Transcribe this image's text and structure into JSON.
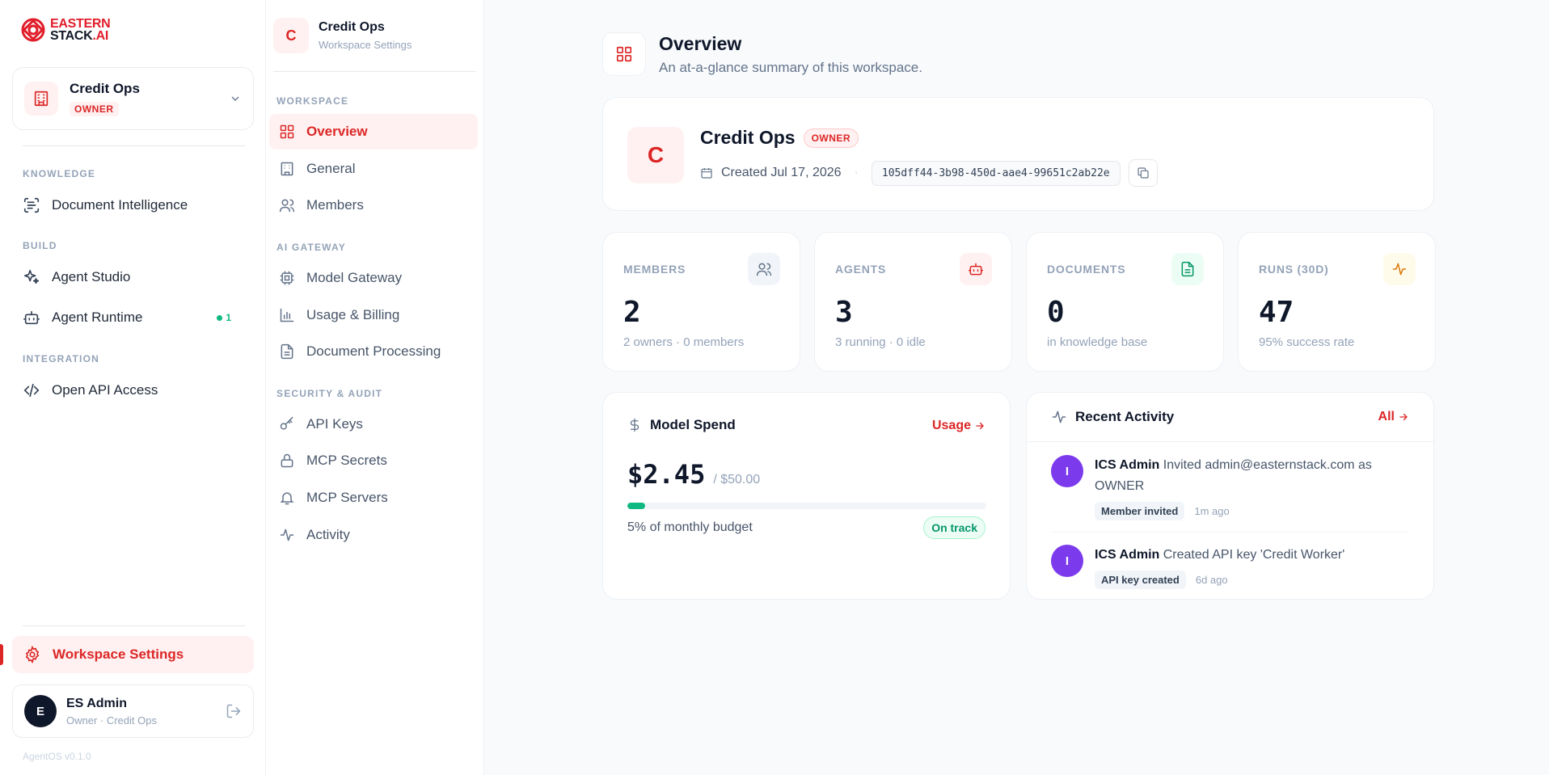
{
  "brand": {
    "line1": "EASTERN",
    "line2": "STACK",
    "line2_suffix": ".AI"
  },
  "workspace_switcher": {
    "name": "Credit Ops",
    "role": "OWNER"
  },
  "sidebar": {
    "sections": [
      {
        "label": "KNOWLEDGE",
        "items": [
          {
            "label": "Document Intelligence",
            "icon": "scan-text-icon"
          }
        ]
      },
      {
        "label": "BUILD",
        "items": [
          {
            "label": "Agent Studio",
            "icon": "sparkles-icon"
          },
          {
            "label": "Agent Runtime",
            "icon": "bot-icon",
            "badge": "1"
          }
        ]
      },
      {
        "label": "INTEGRATION",
        "items": [
          {
            "label": "Open API Access",
            "icon": "code-icon"
          }
        ]
      }
    ],
    "settings_label": "Workspace Settings",
    "user": {
      "initial": "E",
      "name": "ES Admin",
      "sub": "Owner · Credit Ops"
    },
    "version": "AgentOS v0.1.0"
  },
  "subnav": {
    "header": {
      "initial": "C",
      "title": "Credit Ops",
      "subtitle": "Workspace Settings"
    },
    "sections": [
      {
        "label": "WORKSPACE",
        "items": [
          "Overview",
          "General",
          "Members"
        ]
      },
      {
        "label": "AI GATEWAY",
        "items": [
          "Model Gateway",
          "Usage & Billing",
          "Document Processing"
        ]
      },
      {
        "label": "SECURITY & AUDIT",
        "items": [
          "API Keys",
          "MCP Secrets",
          "MCP Servers",
          "Activity"
        ]
      }
    ],
    "active": "Overview"
  },
  "page": {
    "title": "Overview",
    "subtitle": "An at-a-glance summary of this workspace."
  },
  "workspace_card": {
    "initial": "C",
    "name": "Credit Ops",
    "role": "OWNER",
    "created": "Created Jul 17, 2026",
    "separator": "·",
    "id": "105dff44-3b98-450d-aae4-99651c2ab22e"
  },
  "stats": [
    {
      "label": "MEMBERS",
      "value": "2",
      "sub": "2 owners · 0 members",
      "icon": "users-icon",
      "color": "#64748b",
      "bg": "#f1f5f9"
    },
    {
      "label": "AGENTS",
      "value": "3",
      "sub": "3 running · 0 idle",
      "icon": "bot-icon",
      "color": "#dc2626",
      "bg": "#fff1f1"
    },
    {
      "label": "DOCUMENTS",
      "value": "0",
      "sub": "in knowledge base",
      "icon": "file-icon",
      "color": "#059669",
      "bg": "#ecfdf5"
    },
    {
      "label": "RUNS (30D)",
      "value": "47",
      "sub": "95% success rate",
      "icon": "activity-icon",
      "color": "#d97706",
      "bg": "#fffbeb"
    }
  ],
  "spend": {
    "title": "Model Spend",
    "link": "Usage",
    "amount": "$2.45",
    "budget": "/ $50.00",
    "progress_fraction": 0.05,
    "note": "5% of monthly budget",
    "status": "On track"
  },
  "activity": {
    "title": "Recent Activity",
    "link": "All",
    "items": [
      {
        "initial": "I",
        "actor": "ICS Admin",
        "text": "Invited admin@easternstack.com as OWNER",
        "tag": "Member invited",
        "ago": "1m ago"
      },
      {
        "initial": "I",
        "actor": "ICS Admin",
        "text": "Created API key 'Credit Worker'",
        "tag": "API key created",
        "ago": "6d ago"
      }
    ]
  },
  "colors": {
    "accent": "#dc2626",
    "accent_bg": "#fff1f1",
    "success": "#10b981",
    "avatar_purple": "#7c3aed"
  }
}
